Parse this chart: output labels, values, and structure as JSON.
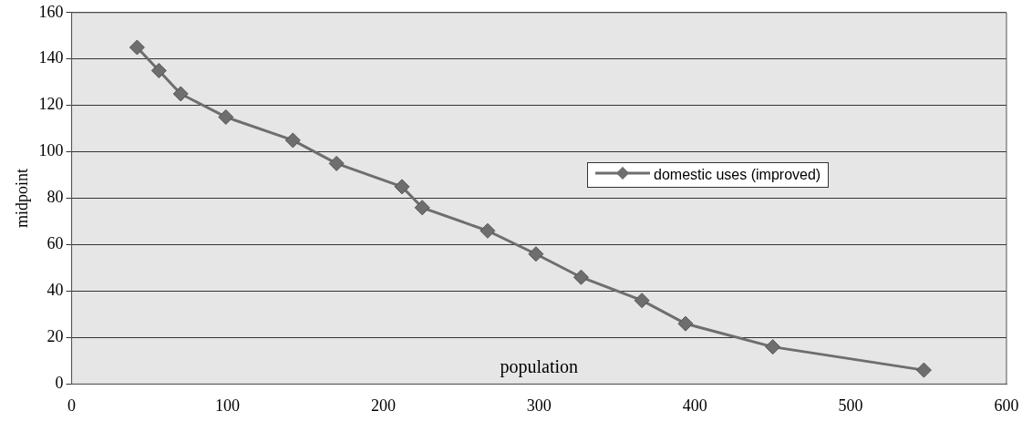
{
  "chart_data": {
    "type": "line",
    "xlabel": "population",
    "ylabel": "midpoint",
    "xlim": [
      0,
      600
    ],
    "xticks": [
      0,
      100,
      200,
      300,
      400,
      500,
      600
    ],
    "ylim": [
      0,
      160
    ],
    "yticks": [
      0,
      20,
      40,
      60,
      80,
      100,
      120,
      140,
      160
    ],
    "grid": "y",
    "legend": "right",
    "marker": "diamond",
    "line_style": "solid",
    "series": [
      {
        "name": "domestic uses (improved)",
        "color": "#6e6e6e",
        "x": [
          42,
          56,
          70,
          99,
          142,
          170,
          212,
          225,
          267,
          298,
          327,
          366,
          394,
          450,
          547
        ],
        "values": [
          145,
          135,
          125,
          115,
          105,
          95,
          85,
          76,
          66,
          56,
          46,
          36,
          26,
          16,
          6
        ]
      }
    ]
  }
}
